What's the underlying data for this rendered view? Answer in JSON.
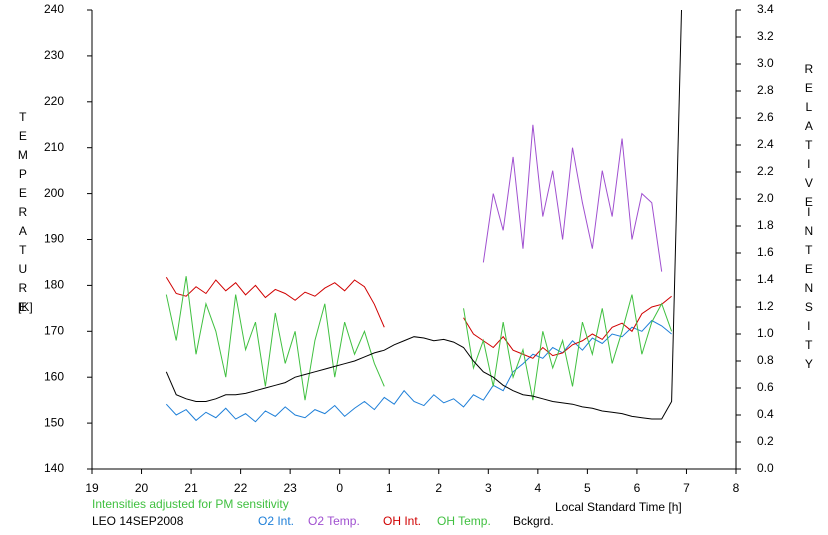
{
  "chart_data": {
    "type": "line",
    "y_label": "TEMPERATURE",
    "y_unit": "[K]",
    "y2_label": [
      "RELATIVE",
      "INTENSITY"
    ],
    "x_label": "Local Standard Time [h]",
    "note": "Intensities adjusted for PM sensitivity",
    "station": "LEO 14SEP2008",
    "xlim": [
      19,
      32
    ],
    "xticks": [
      19,
      20,
      21,
      22,
      23,
      {
        "value": 24,
        "label": "0"
      },
      {
        "value": 25,
        "label": "1"
      },
      {
        "value": 26,
        "label": "2"
      },
      {
        "value": 27,
        "label": "3"
      },
      {
        "value": 28,
        "label": "4"
      },
      {
        "value": 29,
        "label": "5"
      },
      {
        "value": 30,
        "label": "6"
      },
      {
        "value": 31,
        "label": "7"
      },
      {
        "value": 32,
        "label": "8"
      }
    ],
    "ylim": [
      140,
      240
    ],
    "yticks": [
      140,
      150,
      160,
      170,
      180,
      190,
      200,
      210,
      220,
      230,
      240
    ],
    "y2lim": [
      0,
      3.4
    ],
    "y2ticks": [
      {
        "value": 0,
        "label": "0.0"
      },
      0.2,
      0.4,
      0.6,
      0.8,
      {
        "value": 1,
        "label": "1.0"
      },
      1.2,
      1.4,
      1.6,
      1.8,
      {
        "value": 2,
        "label": "2.0"
      },
      2.2,
      2.4,
      2.6,
      2.8,
      {
        "value": 3,
        "label": "3.0"
      },
      3.2,
      3.4
    ],
    "x": [
      20.5,
      20.7,
      20.9,
      21.1,
      21.3,
      21.5,
      21.7,
      21.9,
      22.1,
      22.3,
      22.5,
      22.7,
      22.9,
      23.1,
      23.3,
      23.5,
      23.7,
      23.9,
      24.1,
      24.3,
      24.5,
      24.7,
      24.9,
      25.1,
      25.3,
      25.5,
      25.7,
      25.9,
      26.1,
      26.3,
      26.5,
      26.7,
      26.9,
      27.1,
      27.3,
      27.5,
      27.7,
      27.9,
      28.1,
      28.3,
      28.5,
      28.7,
      28.9,
      29.1,
      29.3,
      29.5,
      29.7,
      29.9,
      30.1,
      30.3,
      30.5,
      30.7,
      30.9
    ],
    "series": [
      {
        "name": "O2 Int.",
        "color": "#1e7fd8",
        "axis": "y2",
        "values": [
          0.48,
          0.4,
          0.44,
          0.36,
          0.42,
          0.38,
          0.45,
          0.37,
          0.41,
          0.35,
          0.43,
          0.39,
          0.46,
          0.4,
          0.38,
          0.44,
          0.41,
          0.47,
          0.39,
          0.45,
          0.5,
          0.44,
          0.53,
          0.48,
          0.58,
          0.5,
          0.47,
          0.55,
          0.49,
          0.52,
          0.46,
          0.55,
          0.51,
          0.62,
          0.58,
          0.72,
          0.78,
          0.85,
          0.82,
          0.9,
          0.86,
          0.95,
          0.88,
          0.97,
          0.93,
          1.0,
          0.98,
          1.05,
          1.02,
          1.1,
          1.06,
          1.0,
          null
        ]
      },
      {
        "name": "O2 Temp.",
        "color": "#a050d0",
        "values": [
          null,
          null,
          null,
          null,
          null,
          null,
          null,
          null,
          null,
          null,
          null,
          null,
          null,
          null,
          null,
          null,
          null,
          null,
          null,
          null,
          null,
          null,
          null,
          null,
          null,
          null,
          null,
          null,
          null,
          null,
          null,
          null,
          185,
          200,
          192,
          208,
          188,
          215,
          195,
          205,
          190,
          210,
          198,
          188,
          205,
          195,
          212,
          190,
          200,
          198,
          183,
          null,
          null
        ]
      },
      {
        "name": "OH Int.",
        "color": "#d00000",
        "axis": "y2",
        "values": [
          1.42,
          1.3,
          1.28,
          1.35,
          1.3,
          1.4,
          1.32,
          1.38,
          1.29,
          1.36,
          1.27,
          1.33,
          1.3,
          1.25,
          1.31,
          1.28,
          1.34,
          1.38,
          1.32,
          1.4,
          1.35,
          1.22,
          1.05,
          null,
          null,
          null,
          null,
          null,
          null,
          null,
          1.12,
          1.0,
          0.95,
          0.9,
          0.98,
          0.88,
          0.85,
          0.82,
          0.9,
          0.84,
          0.86,
          0.92,
          0.95,
          1.0,
          0.96,
          1.05,
          1.08,
          1.02,
          1.15,
          1.2,
          1.22,
          1.28,
          null
        ]
      },
      {
        "name": "OH Temp.",
        "color": "#40c040",
        "values": [
          178,
          168,
          182,
          165,
          176,
          170,
          160,
          178,
          166,
          172,
          158,
          174,
          163,
          170,
          155,
          168,
          176,
          160,
          172,
          165,
          170,
          163,
          158,
          null,
          null,
          null,
          null,
          null,
          null,
          null,
          175,
          162,
          168,
          158,
          172,
          160,
          166,
          155,
          170,
          162,
          168,
          158,
          172,
          165,
          175,
          163,
          170,
          178,
          165,
          172,
          176,
          170,
          null
        ]
      },
      {
        "name": "Bckgrd.",
        "color": "#000000",
        "axis": "y2",
        "values": [
          0.72,
          0.55,
          0.52,
          0.5,
          0.5,
          0.52,
          0.55,
          0.55,
          0.56,
          0.58,
          0.6,
          0.62,
          0.64,
          0.68,
          0.7,
          0.72,
          0.74,
          0.76,
          0.78,
          0.8,
          0.83,
          0.86,
          0.88,
          0.92,
          0.95,
          0.98,
          0.97,
          0.95,
          0.96,
          0.94,
          0.9,
          0.8,
          0.72,
          0.68,
          0.62,
          0.58,
          0.55,
          0.54,
          0.52,
          0.5,
          0.49,
          0.48,
          0.46,
          0.45,
          0.43,
          0.42,
          0.41,
          0.39,
          0.38,
          0.37,
          0.37,
          0.5,
          3.4
        ]
      }
    ]
  }
}
